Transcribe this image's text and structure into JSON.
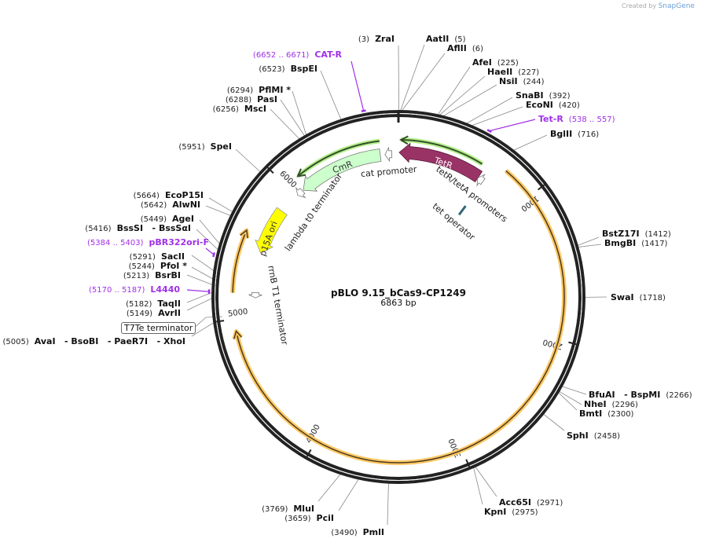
{
  "credit": {
    "prefix": "Created by",
    "brand": "SnapGene"
  },
  "plasmid": {
    "name": "pBLO 9.15_bCas9-CP1249",
    "length_label": "6863 bp",
    "length": 6863
  },
  "ticks": [
    "1000",
    "2000",
    "3000",
    "4000",
    "5000",
    "6000"
  ],
  "sites": [
    {
      "name": "ZraI",
      "pos": "(3)",
      "bp": 3
    },
    {
      "name": "AatII",
      "pos": "(5)",
      "bp": 5
    },
    {
      "name": "AflII",
      "pos": "(6)",
      "bp": 6
    },
    {
      "name": "AfeI",
      "pos": "(225)",
      "bp": 225
    },
    {
      "name": "HaeII",
      "pos": "(227)",
      "bp": 227
    },
    {
      "name": "NsiI",
      "pos": "(244)",
      "bp": 244
    },
    {
      "name": "SnaBI",
      "pos": "(392)",
      "bp": 392
    },
    {
      "name": "EcoNI",
      "pos": "(420)",
      "bp": 420
    },
    {
      "name": "BglII",
      "pos": "(716)",
      "bp": 716
    },
    {
      "name": "BstZ17I",
      "pos": "(1412)",
      "bp": 1412
    },
    {
      "name": "BmgBI",
      "pos": "(1417)",
      "bp": 1417
    },
    {
      "name": "SwaI",
      "pos": "(1718)",
      "bp": 1718
    },
    {
      "name": "BfuAI   - BspMI",
      "pos": "(2266)",
      "bp": 2266
    },
    {
      "name": "NheI",
      "pos": "(2296)",
      "bp": 2296
    },
    {
      "name": "BmtI",
      "pos": "(2300)",
      "bp": 2300
    },
    {
      "name": "SphI",
      "pos": "(2458)",
      "bp": 2458
    },
    {
      "name": "Acc65I",
      "pos": "(2971)",
      "bp": 2971
    },
    {
      "name": "KpnI",
      "pos": "(2975)",
      "bp": 2975
    },
    {
      "name": "PmlI",
      "pos": "(3490)",
      "bp": 3490
    },
    {
      "name": "PciI",
      "pos": "(3659)",
      "bp": 3659
    },
    {
      "name": "MluI",
      "pos": "(3769)",
      "bp": 3769
    },
    {
      "name": "AvaI   - BsoBI   - PaeR7I   - XhoI",
      "pos": "(5005)",
      "bp": 5005
    },
    {
      "name": "AvrII",
      "pos": "(5149)",
      "bp": 5149
    },
    {
      "name": "TaqII",
      "pos": "(5182)",
      "bp": 5182
    },
    {
      "name": "BsrBI",
      "pos": "(5213)",
      "bp": 5213
    },
    {
      "name": "PfoI *",
      "pos": "(5244)",
      "bp": 5244
    },
    {
      "name": "SacII",
      "pos": "(5291)",
      "bp": 5291
    },
    {
      "name": "BssSI   - BssSαI",
      "pos": "(5416)",
      "bp": 5416
    },
    {
      "name": "AgeI",
      "pos": "(5449)",
      "bp": 5449
    },
    {
      "name": "AlwNI",
      "pos": "(5642)",
      "bp": 5642
    },
    {
      "name": "EcoP15I",
      "pos": "(5664)",
      "bp": 5664
    },
    {
      "name": "SpeI",
      "pos": "(5951)",
      "bp": 5951
    },
    {
      "name": "MscI",
      "pos": "(6256)",
      "bp": 6256
    },
    {
      "name": "PasI",
      "pos": "(6288)",
      "bp": 6288
    },
    {
      "name": "PflMI *",
      "pos": "(6294)",
      "bp": 6294
    },
    {
      "name": "BspEI",
      "pos": "(6523)",
      "bp": 6523
    }
  ],
  "primers": [
    {
      "name": "CAT-R",
      "range": "(6652 .. 6671)",
      "bp": 6661
    },
    {
      "name": "Tet-R",
      "range": "(538 .. 557)",
      "bp": 547
    },
    {
      "name": "pBR322ori-F",
      "range": "(5384 .. 5403)",
      "bp": 5393
    },
    {
      "name": "L4440",
      "range": "(5170 .. 5187)",
      "bp": 5178
    }
  ],
  "features": {
    "tetr": {
      "label": "TetR",
      "start": 6,
      "end": 642,
      "color": "#993366"
    },
    "cmr": {
      "label": "CmR",
      "start": 6068,
      "end": 6724,
      "color": "#ccffcc"
    },
    "p15a": {
      "label": "p15A ori",
      "start": 5484,
      "end": 5841,
      "color": "#ffff00"
    },
    "cat_promoter": {
      "label": "cat promoter",
      "start": 6760,
      "end": 6812
    },
    "tet_promoters": {
      "label": "tetR/tetA promoters",
      "start": 642,
      "end": 690
    },
    "lambda_term": {
      "label": "lambda t0 terminator",
      "start": 6010,
      "end": 6060
    },
    "rrnb_term": {
      "label": "rrnB T1 terminator",
      "start": 5140,
      "end": 5180
    },
    "tet_operator": {
      "label": "tet operator",
      "bp": 694,
      "color": "#336677"
    },
    "t7te_term": {
      "label": "T7Te terminator"
    },
    "orange_arcs": [
      {
        "start": 770,
        "end": 4920
      },
      {
        "start": 5175,
        "end": 5600
      }
    ],
    "green_arcs": [
      {
        "start": 17,
        "end": 614
      },
      {
        "start": 6104,
        "end": 6731
      }
    ],
    "colors": {
      "orange": "#ffc864",
      "green": "#b6f08c",
      "primer": "#a030e8"
    }
  }
}
